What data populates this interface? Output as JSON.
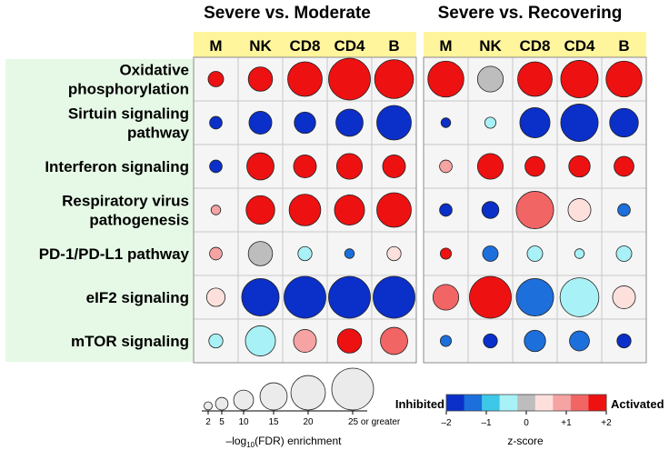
{
  "chart_data": {
    "type": "bubble-matrix",
    "groups": [
      "Severe vs. Moderate",
      "Severe vs. Recovering"
    ],
    "columns": [
      "M",
      "NK",
      "CD8",
      "CD4",
      "B"
    ],
    "rows": [
      {
        "label": "Oxidative phosphorylation",
        "lines": [
          "Oxidative",
          "phosphorylation"
        ]
      },
      {
        "label": "Sirtuin signaling pathway",
        "lines": [
          "Sirtuin signaling",
          "pathway"
        ]
      },
      {
        "label": "Interferon signaling",
        "lines": [
          "Interferon signaling"
        ]
      },
      {
        "label": "Respiratory virus pathogenesis",
        "lines": [
          "Respiratory virus",
          "pathogenesis"
        ]
      },
      {
        "label": "PD-1/PD-L1 pathway",
        "lines": [
          "PD-1/PD-L1 pathway"
        ]
      },
      {
        "label": "eIF2 signaling",
        "lines": [
          "eIF2 signaling"
        ]
      },
      {
        "label": "mTOR signaling",
        "lines": [
          "mTOR signaling"
        ]
      }
    ],
    "zscore": [
      [
        [
          2.0,
          -1.8,
          -1.8,
          1.2,
          0.8,
          0.3,
          -0.5
        ],
        [
          2.0,
          -1.8,
          2.0,
          2.0,
          0.0,
          -1.9,
          -0.7
        ],
        [
          2.0,
          -1.8,
          2.0,
          2.0,
          -0.5,
          -1.9,
          0.8
        ],
        [
          2.0,
          -1.8,
          2.0,
          2.0,
          -1.4,
          -1.9,
          2.0
        ],
        [
          2.0,
          -1.8,
          2.0,
          2.0,
          0.3,
          -1.9,
          1.3
        ]
      ],
      [
        [
          2.0,
          -1.8,
          1.2,
          -1.8,
          2.0,
          1.3,
          -1.3
        ],
        [
          0.0,
          -0.5,
          2.0,
          -1.8,
          -1.3,
          2.0,
          -1.8
        ],
        [
          2.0,
          -1.8,
          2.0,
          1.3,
          -0.5,
          -1.3,
          -1.3
        ],
        [
          2.0,
          -1.8,
          2.0,
          0.3,
          -0.5,
          -0.5,
          -1.3
        ],
        [
          2.0,
          -1.8,
          2.0,
          -1.3,
          -0.5,
          0.3,
          -1.8
        ]
      ]
    ],
    "enrichment": [
      [
        [
          7,
          5,
          5,
          3,
          5,
          9,
          6
        ],
        [
          13,
          12,
          15,
          16,
          13,
          22,
          17
        ],
        [
          20,
          11,
          12,
          18,
          6,
          25,
          12
        ],
        [
          25,
          15,
          14,
          17,
          3,
          25,
          13
        ],
        [
          23,
          20,
          12,
          20,
          6,
          25,
          15
        ]
      ],
      [
        [
          21,
          3,
          5,
          5,
          4,
          14,
          4
        ],
        [
          14,
          4,
          14,
          8,
          7,
          25,
          6
        ],
        [
          20,
          17,
          10,
          22,
          7,
          22,
          11
        ],
        [
          22,
          22,
          11,
          12,
          3,
          23,
          10
        ],
        [
          21,
          16,
          10,
          5,
          7,
          12,
          6
        ]
      ]
    ],
    "size_legend": {
      "values": [
        2,
        5,
        10,
        15,
        20,
        25
      ],
      "tick_labels": [
        "2",
        "5",
        "10",
        "15",
        "20",
        "25 or greater"
      ],
      "title": "–log10(FDR) enrichment",
      "title_main": "–log",
      "title_sub": "10",
      "title_rest": "(FDR) enrichment"
    },
    "color_legend": {
      "left_label": "Inhibited",
      "right_label": "Activated",
      "colors": [
        "#0b2fc9",
        "#1d6fdc",
        "#3ec8e8",
        "#a8f1f6",
        "#bdbdbd",
        "#fde0dc",
        "#f6a3a3",
        "#f26565",
        "#ee1111"
      ],
      "ticks": [
        -2,
        -1,
        0,
        1,
        2
      ],
      "tick_labels": [
        "–2",
        "–1",
        "0",
        "+1",
        "+2"
      ],
      "title": "z-score"
    },
    "colors": {
      "header_band": "#fff59d",
      "row_band": "#e6f9e6"
    }
  }
}
